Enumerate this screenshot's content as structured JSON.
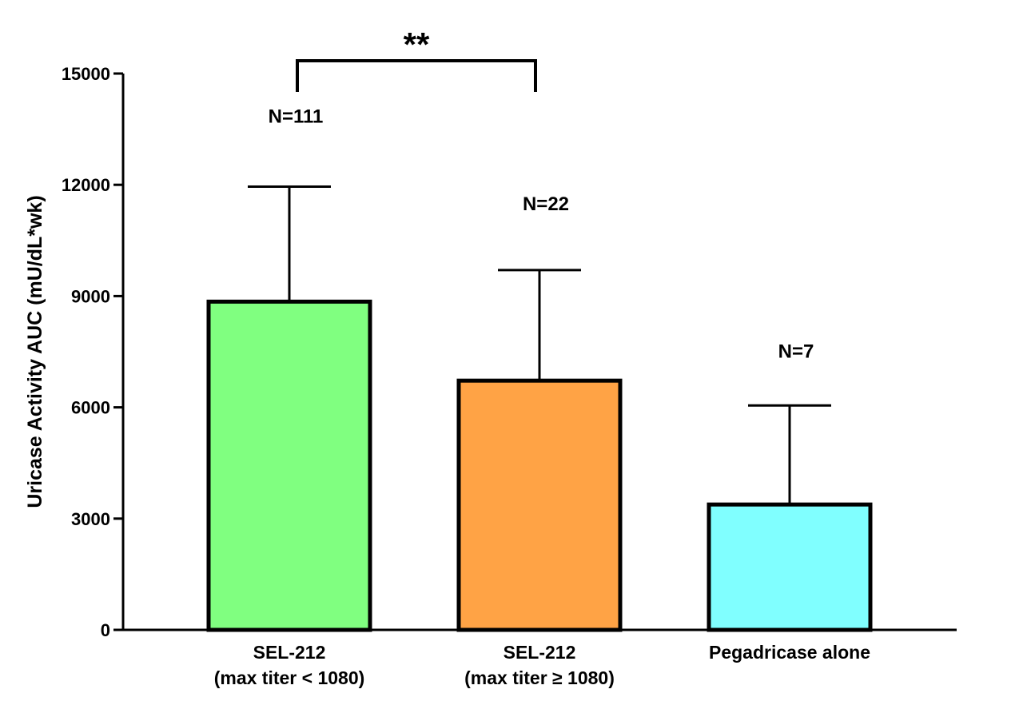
{
  "chart_data": {
    "type": "bar",
    "title": "",
    "xlabel": "",
    "ylabel": "Uricase Activity AUC (mU/dL*wk)",
    "ylim": [
      0,
      15000
    ],
    "yticks": [
      "0",
      "3000",
      "6000",
      "9000",
      "12000",
      "15000"
    ],
    "ytick_values": [
      0,
      3000,
      6000,
      9000,
      12000,
      15000
    ],
    "categories": [
      {
        "line1": "SEL-212",
        "line2": "(max titer < 1080)"
      },
      {
        "line1": "SEL-212",
        "line2": "(max titer ≥ 1080)"
      },
      {
        "line1": "Pegadricase alone",
        "line2": ""
      }
    ],
    "values": [
      8850,
      6720,
      3380
    ],
    "error_upper": [
      11950,
      9700,
      6050
    ],
    "bar_colors": [
      "#80ff80",
      "#ffa345",
      "#80ffff"
    ],
    "n_labels": [
      "N=111",
      "N=22",
      "N=7"
    ],
    "significance": {
      "label": "**",
      "from_index": 0,
      "to_index": 1
    }
  }
}
